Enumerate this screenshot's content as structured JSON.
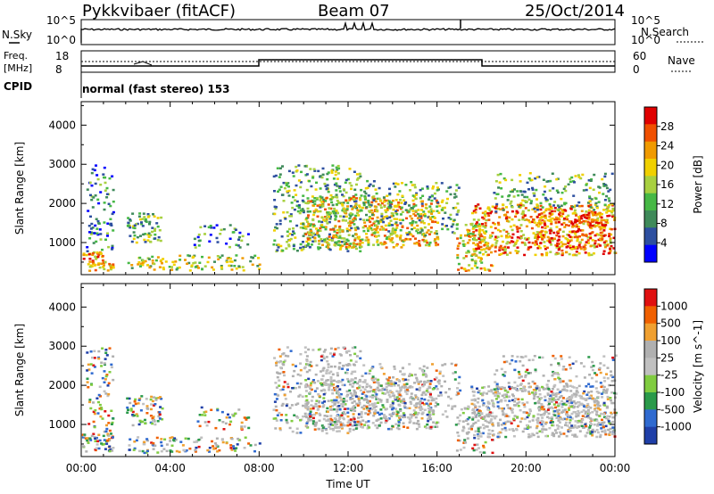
{
  "header": {
    "title": "Pykkvibaer (fitACF)",
    "beam": "Beam 07",
    "date": "25/Oct/2014"
  },
  "param_panels": {
    "nsky_label": "N.Sky",
    "nsearch_label": "N.Search",
    "noise_ticks": [
      "10^5",
      "10^0"
    ],
    "freq_label_1": "Freq.",
    "freq_label_2": "[MHz]",
    "freq_ticks": [
      "18",
      "8"
    ],
    "nave_label": "Nave",
    "nave_ticks": [
      "60",
      "0"
    ],
    "cpid_label": "CPID",
    "cpid_text": "normal (fast stereo) 153"
  },
  "colors": {
    "power": [
      "#0000ff",
      "#2d4fa0",
      "#3f8a5a",
      "#46b845",
      "#a8d040",
      "#f0d000",
      "#f09a00",
      "#f05000",
      "#e00000"
    ],
    "velocity": [
      "#1f3fa8",
      "#2f6ad0",
      "#2a9a4a",
      "#80cc40",
      "#c0c0c0",
      "#b0b0b0",
      "#f0a030",
      "#f06000",
      "#e01010"
    ]
  },
  "chart_data": [
    {
      "type": "heatmap",
      "name": "Power",
      "ylabel": "Slant Range [km]",
      "ylim": [
        180,
        4600
      ],
      "yticks": [
        1000,
        2000,
        3000,
        4000
      ],
      "xlim": [
        0,
        24
      ],
      "colorbar": {
        "label": "Power [dB]",
        "ticks": [
          4,
          8,
          12,
          16,
          20,
          24,
          28
        ],
        "range": [
          0,
          32
        ]
      }
    },
    {
      "type": "heatmap",
      "name": "Velocity",
      "ylabel": "Slant Range [km]",
      "ylim": [
        180,
        4600
      ],
      "yticks": [
        1000,
        2000,
        3000,
        4000
      ],
      "xlim": [
        0,
        24
      ],
      "xticks": [
        "00:00",
        "04:00",
        "08:00",
        "12:00",
        "16:00",
        "20:00",
        "00:00"
      ],
      "xlabel": "Time UT",
      "colorbar": {
        "label": "Velocity [m s^-1]",
        "ticks": [
          "1000",
          "500",
          "100",
          "25",
          "-25",
          "-100",
          "-500",
          "-1000"
        ]
      }
    }
  ]
}
